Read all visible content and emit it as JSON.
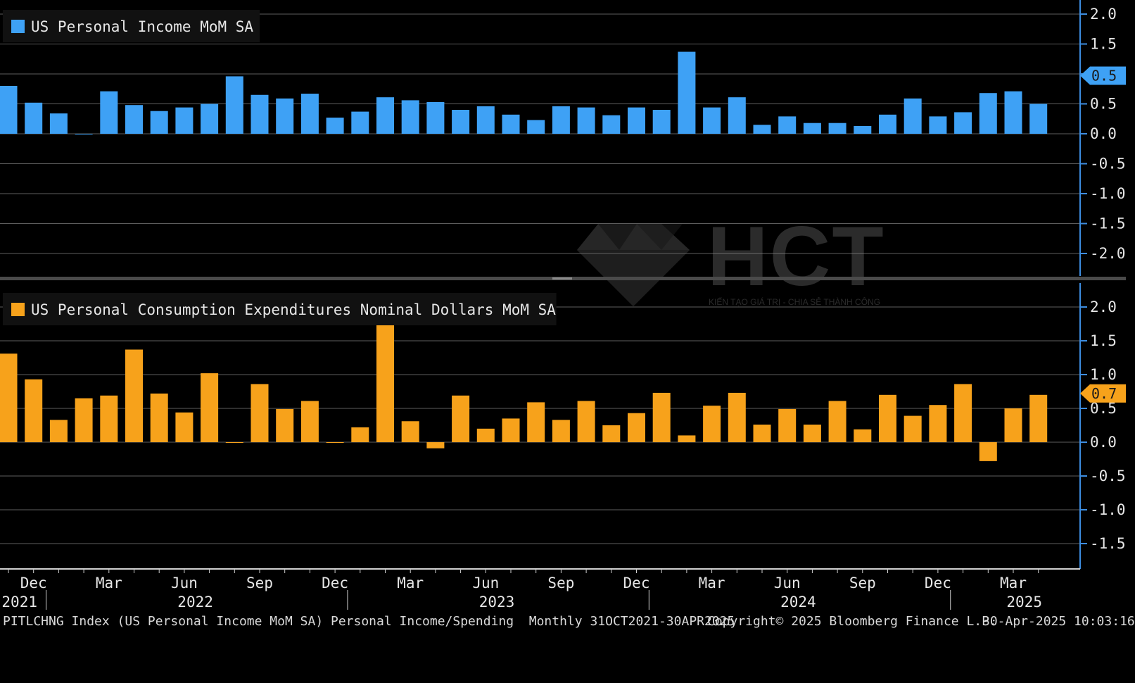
{
  "chart_data": [
    {
      "type": "bar",
      "title": "US Personal Income MoM SA",
      "color": "#3ea1f5",
      "ylim": [
        -2.5,
        2.2
      ],
      "yticks": [
        2.0,
        1.5,
        1.0,
        0.5,
        0.0,
        -0.5,
        -1.0,
        -1.5,
        -2.0
      ],
      "grid": true,
      "legend_position": "top-left",
      "last_value_label": "0.5",
      "values": [
        0.8,
        0.52,
        0.34,
        0.0,
        0.71,
        0.48,
        0.38,
        0.44,
        0.5,
        0.96,
        0.65,
        0.59,
        0.67,
        0.27,
        0.37,
        0.61,
        0.56,
        0.53,
        0.4,
        0.46,
        0.32,
        0.23,
        0.46,
        0.44,
        0.31,
        0.44,
        0.4,
        1.37,
        0.44,
        0.61,
        0.15,
        0.29,
        0.18,
        0.18,
        0.13,
        0.32,
        0.59,
        0.29,
        0.36,
        0.68,
        0.71,
        0.5
      ]
    },
    {
      "type": "bar",
      "title": "US Personal Consumption Expenditures Nominal Dollars MoM SA",
      "color": "#f7a21b",
      "ylim": [
        -1.9,
        2.3
      ],
      "yticks": [
        2.0,
        1.5,
        1.0,
        0.5,
        0.0,
        -0.5,
        -1.0,
        -1.5
      ],
      "grid": true,
      "legend_position": "top-left",
      "last_value_label": "0.7",
      "values": [
        1.31,
        0.93,
        0.33,
        0.65,
        0.69,
        1.37,
        0.72,
        0.44,
        1.02,
        0.0,
        0.86,
        0.49,
        0.61,
        0.0,
        0.22,
        1.89,
        0.31,
        -0.09,
        0.69,
        0.2,
        0.35,
        0.59,
        0.33,
        0.61,
        0.25,
        0.43,
        0.73,
        0.1,
        0.54,
        0.73,
        0.26,
        0.49,
        0.26,
        0.61,
        0.19,
        0.7,
        0.39,
        0.55,
        0.86,
        -0.28,
        0.5,
        0.7
      ]
    }
  ],
  "x_axis": {
    "month_labels": [
      "Dec",
      "Mar",
      "Jun",
      "Sep",
      "Dec",
      "Mar",
      "Jun",
      "Sep",
      "Dec",
      "Mar",
      "Jun",
      "Sep",
      "Dec",
      "Mar"
    ],
    "year_labels": [
      "2021",
      "2022",
      "2023",
      "2024",
      "2025"
    ]
  },
  "watermark": {
    "brand": "HCT",
    "tagline": "KIẾN TẠO GIÁ TRỊ - CHIA SẺ THÀNH CÔNG"
  },
  "footer": {
    "left": "PITLCHNG Index (US Personal Income MoM SA) Personal Income/Spending  Monthly 31OCT2021-30APR2025",
    "middle": "Copyright© 2025 Bloomberg Finance L.P.",
    "right": "30-Apr-2025 10:03:16"
  }
}
